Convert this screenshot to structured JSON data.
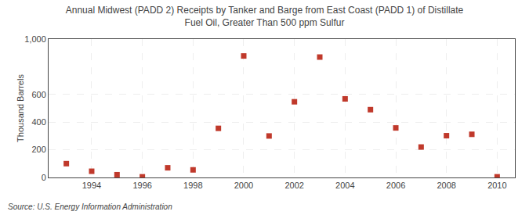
{
  "chart_data": {
    "type": "scatter",
    "title": "Annual Midwest (PADD 2) Receipts by Tanker and Barge from East Coast (PADD 1) of Distillate\nFuel Oil, Greater Than 500 ppm Sulfur",
    "ylabel": "Thousand Barrels",
    "annotations": [
      "Source: U.S. Energy Information Administration"
    ],
    "x": [
      1993,
      1994,
      1995,
      1996,
      1997,
      1998,
      1999,
      2000,
      2001,
      2002,
      2003,
      2004,
      2005,
      2006,
      2007,
      2008,
      2009,
      2010
    ],
    "values": [
      100,
      45,
      20,
      5,
      70,
      55,
      355,
      878,
      300,
      547,
      870,
      568,
      490,
      358,
      220,
      302,
      312,
      5
    ],
    "color": "#c0392b",
    "marker": "square",
    "xlim": [
      1992.3,
      2010.7
    ],
    "xticks": [
      1994,
      1996,
      1998,
      2000,
      2002,
      2004,
      2006,
      2008,
      2010
    ],
    "ylim": [
      0,
      1000
    ],
    "yticks": [
      0,
      200,
      400,
      600,
      {
        "value": 1000,
        "label": "1,000"
      }
    ],
    "grid": true
  }
}
